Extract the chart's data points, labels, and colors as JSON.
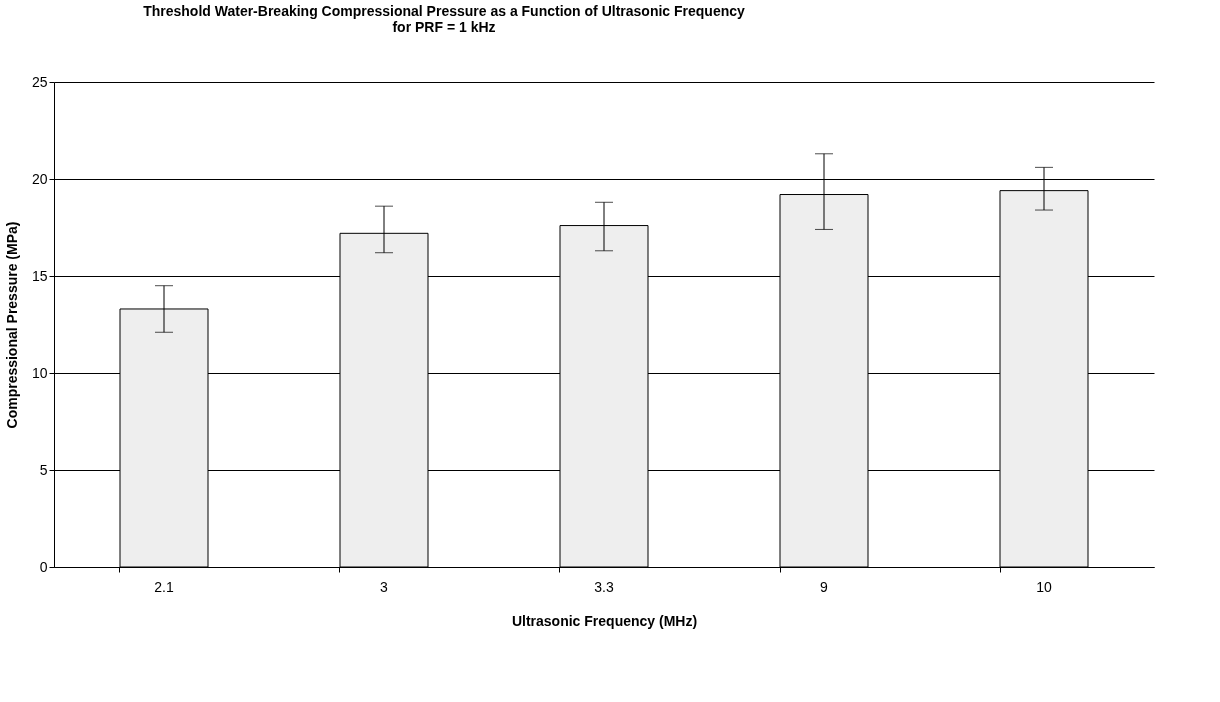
{
  "chart_data": {
    "type": "bar",
    "title": [
      "Threshold Water-Breaking Compressional Pressure as a Function of Ultrasonic Frequency",
      "for PRF = 1 kHz"
    ],
    "xlabel": "Ultrasonic Frequency (MHz)",
    "ylabel": "Compressional Pressure (MPa)",
    "categories": [
      "2.1",
      "3",
      "3.3",
      "9",
      "10"
    ],
    "values": [
      13.3,
      17.2,
      17.6,
      19.2,
      19.4
    ],
    "errors": [
      [
        12.1,
        14.5
      ],
      [
        16.2,
        18.6
      ],
      [
        16.3,
        18.8
      ],
      [
        17.4,
        21.3
      ],
      [
        18.4,
        20.6
      ]
    ],
    "color": "#eeeeee",
    "ylim": [
      0,
      25
    ],
    "yticks": [
      0,
      5,
      10,
      15,
      20,
      25
    ],
    "grid": "y"
  }
}
